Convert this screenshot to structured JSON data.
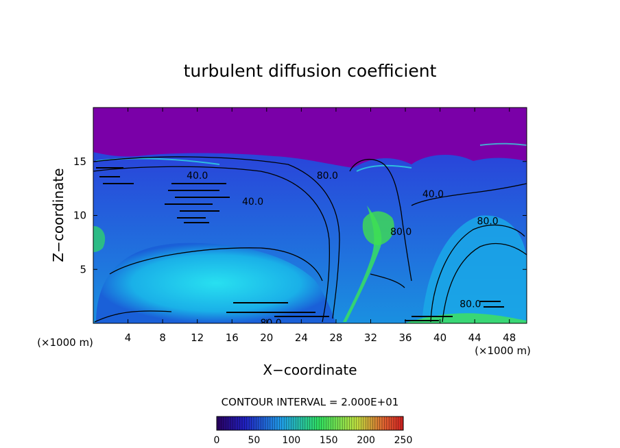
{
  "chart_data": {
    "type": "heatmap",
    "title": "turbulent diffusion coefficient",
    "xlabel": "X−coordinate",
    "ylabel": "Z−coordinate",
    "x_unit_left": "(×1000 m)",
    "x_unit_right": "(×1000 m)",
    "xlim": [
      0,
      50
    ],
    "ylim": [
      0,
      20
    ],
    "x_ticks": [
      4,
      8,
      12,
      16,
      20,
      24,
      28,
      32,
      36,
      40,
      44,
      48
    ],
    "x_tick_labels": [
      "4",
      "8",
      "12",
      "16",
      "20",
      "24",
      "28",
      "32",
      "36",
      "40",
      "44",
      "48"
    ],
    "y_ticks": [
      5,
      10,
      15
    ],
    "y_tick_labels": [
      "5",
      "10",
      "15"
    ],
    "contour_interval_text": "CONTOUR INTERVAL = 2.000E+01",
    "contour_labels": [
      {
        "text": "40.0",
        "x": 12.0,
        "y": 13.7
      },
      {
        "text": "40.0",
        "x": 18.4,
        "y": 11.3
      },
      {
        "text": "80.0",
        "x": 27.0,
        "y": 13.7
      },
      {
        "text": "80.0",
        "x": 35.5,
        "y": 8.5
      },
      {
        "text": "40.0",
        "x": 39.2,
        "y": 12.0
      },
      {
        "text": "80.0",
        "x": 45.5,
        "y": 9.5
      },
      {
        "text": "80.0",
        "x": 43.5,
        "y": 1.8
      },
      {
        "text": "80.0",
        "x": 20.5,
        "y": 0.05
      }
    ],
    "colorbar": {
      "min": 0,
      "max": 250,
      "tick_values": [
        0,
        50,
        100,
        150,
        200,
        250
      ],
      "tick_labels": [
        "0",
        "50",
        "100",
        "150",
        "200",
        "250"
      ]
    },
    "colors": {
      "background_top": "#7a00a8",
      "low": "#1a10c8",
      "mid": "#1fb8e8",
      "high": "#38f060",
      "contour": "#000000"
    },
    "grid": false
  }
}
